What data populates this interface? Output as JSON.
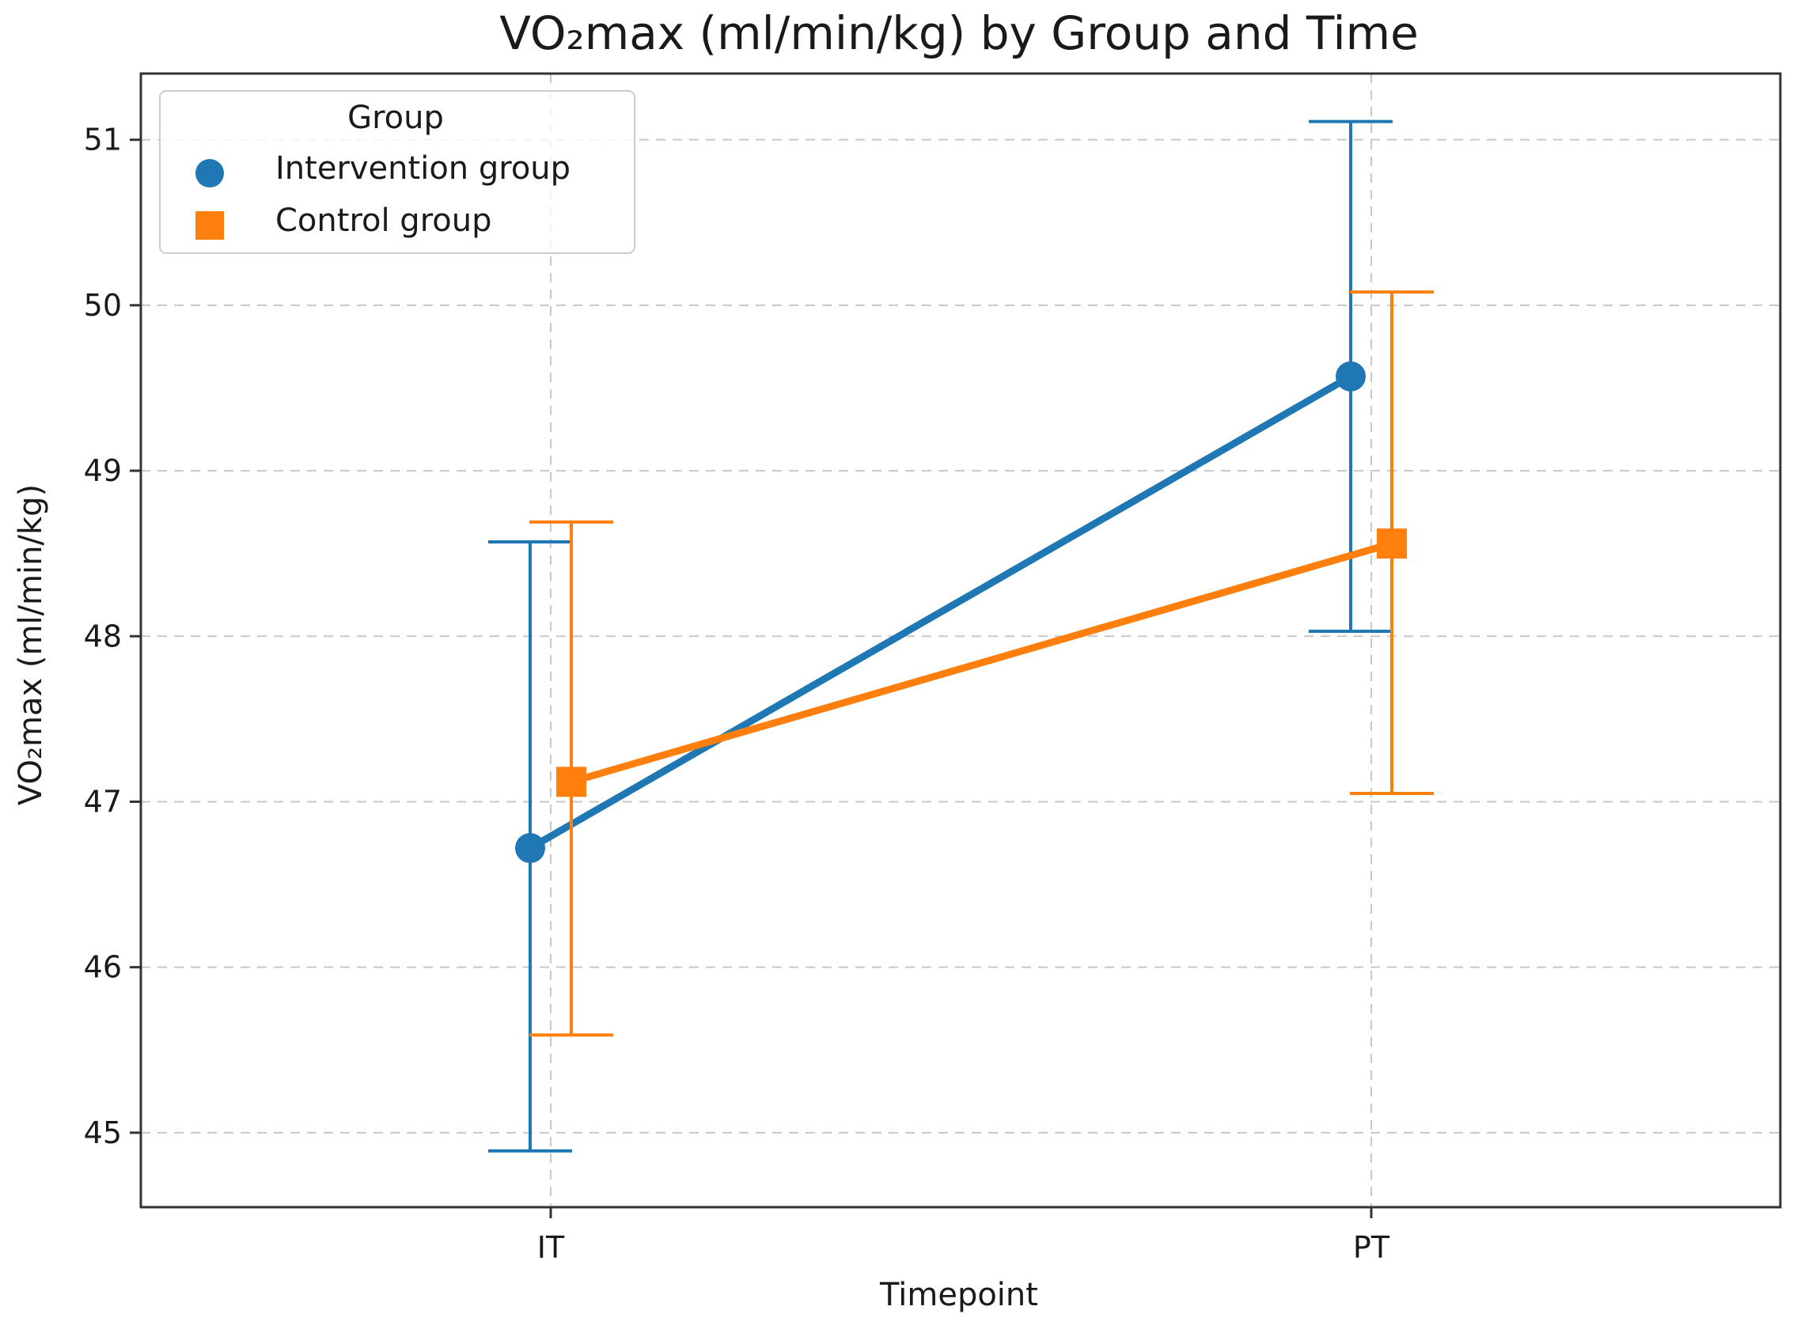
{
  "chart_data": {
    "type": "line",
    "title": "VO₂max (ml/min/kg) by Group and Time",
    "xlabel": "Timepoint",
    "ylabel": "VO₂max (ml/min/kg)",
    "categories": [
      "IT",
      "PT"
    ],
    "ylim": [
      44.55,
      51.4
    ],
    "yticks": [
      45,
      46,
      47,
      48,
      49,
      50,
      51
    ],
    "grid": true,
    "legend": {
      "title": "Group",
      "position": "top-left"
    },
    "series": [
      {
        "name": "Intervention group",
        "marker": "circle",
        "color": "#1f77b4",
        "values": [
          46.72,
          49.57
        ],
        "error_low": [
          44.89,
          48.03
        ],
        "error_high": [
          48.57,
          51.11
        ]
      },
      {
        "name": "Control group",
        "marker": "square",
        "color": "#ff7f0e",
        "values": [
          47.12,
          48.56
        ],
        "error_low": [
          45.59,
          47.05
        ],
        "error_high": [
          48.69,
          50.08
        ]
      }
    ]
  }
}
